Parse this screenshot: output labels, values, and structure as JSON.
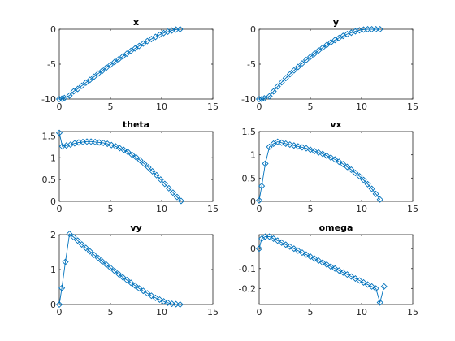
{
  "figure": {
    "background": "#ffffff",
    "series_color": "#0072bd"
  },
  "chart_data": [
    {
      "type": "line",
      "title": "x",
      "xlim": [
        0,
        15
      ],
      "ylim": [
        -10,
        0
      ],
      "xticks": [
        0,
        5,
        10,
        15
      ],
      "yticks": [
        -10,
        -5,
        0
      ],
      "marker": "diamond",
      "x": [
        0,
        0.25,
        0.5,
        1,
        1.4,
        1.8,
        2.2,
        2.6,
        3,
        3.4,
        3.8,
        4.2,
        4.6,
        5,
        5.4,
        5.8,
        6.2,
        6.6,
        7,
        7.4,
        7.8,
        8.2,
        8.6,
        9,
        9.4,
        9.8,
        10.2,
        10.6,
        11,
        11.4,
        11.8
      ],
      "y": [
        -10,
        -9.95,
        -9.85,
        -9.5,
        -8.9,
        -8.55,
        -8.1,
        -7.65,
        -7.25,
        -6.8,
        -6.35,
        -5.95,
        -5.5,
        -5.1,
        -4.7,
        -4.3,
        -3.9,
        -3.5,
        -3.1,
        -2.75,
        -2.4,
        -2.05,
        -1.7,
        -1.4,
        -1.1,
        -0.8,
        -0.55,
        -0.35,
        -0.18,
        -0.05,
        0
      ]
    },
    {
      "type": "line",
      "title": "y",
      "xlim": [
        0,
        15
      ],
      "ylim": [
        -10,
        0
      ],
      "xticks": [
        0,
        5,
        10,
        15
      ],
      "yticks": [
        -10,
        -5,
        0
      ],
      "marker": "diamond",
      "x": [
        0,
        0.25,
        0.5,
        1,
        1.4,
        1.8,
        2.2,
        2.6,
        3,
        3.4,
        3.8,
        4.2,
        4.6,
        5,
        5.4,
        5.8,
        6.2,
        6.6,
        7,
        7.4,
        7.8,
        8.2,
        8.6,
        9,
        9.4,
        9.8,
        10.2,
        10.6,
        11,
        11.4,
        11.8
      ],
      "y": [
        -10,
        -10,
        -9.9,
        -9.6,
        -8.9,
        -8.2,
        -7.6,
        -7,
        -6.45,
        -5.9,
        -5.4,
        -4.9,
        -4.4,
        -3.95,
        -3.5,
        -3.05,
        -2.65,
        -2.25,
        -1.9,
        -1.55,
        -1.25,
        -0.95,
        -0.7,
        -0.5,
        -0.3,
        -0.15,
        -0.05,
        0,
        0,
        0,
        0
      ]
    },
    {
      "type": "line",
      "title": "theta",
      "xlim": [
        0,
        15
      ],
      "ylim": [
        0,
        1.6
      ],
      "xticks": [
        0,
        5,
        10,
        15
      ],
      "yticks": [
        0,
        0.5,
        1,
        1.5
      ],
      "marker": "diamond",
      "x": [
        0,
        0.3,
        0.7,
        1.1,
        1.5,
        1.9,
        2.3,
        2.7,
        3.1,
        3.5,
        3.9,
        4.3,
        4.7,
        5.1,
        5.5,
        5.9,
        6.3,
        6.7,
        7.1,
        7.5,
        7.9,
        8.3,
        8.7,
        9.1,
        9.5,
        9.9,
        10.3,
        10.7,
        11.1,
        11.5,
        11.9
      ],
      "y": [
        1.57,
        1.26,
        1.28,
        1.3,
        1.33,
        1.35,
        1.36,
        1.37,
        1.37,
        1.36,
        1.35,
        1.34,
        1.32,
        1.29,
        1.26,
        1.22,
        1.18,
        1.13,
        1.07,
        1.01,
        0.94,
        0.86,
        0.78,
        0.69,
        0.6,
        0.5,
        0.4,
        0.3,
        0.2,
        0.1,
        0.01
      ]
    },
    {
      "type": "line",
      "title": "vx",
      "xlim": [
        0,
        15
      ],
      "ylim": [
        0,
        1.5
      ],
      "xticks": [
        0,
        5,
        10,
        15
      ],
      "yticks": [
        0,
        0.5,
        1,
        1.5
      ],
      "marker": "diamond",
      "x": [
        0,
        0.25,
        0.6,
        1,
        1.4,
        1.8,
        2.2,
        2.6,
        3,
        3.4,
        3.8,
        4.2,
        4.6,
        5,
        5.4,
        5.8,
        6.2,
        6.6,
        7,
        7.4,
        7.8,
        8.2,
        8.6,
        9,
        9.4,
        9.8,
        10.2,
        10.6,
        11,
        11.4,
        11.8
      ],
      "y": [
        0.02,
        0.33,
        0.81,
        1.17,
        1.24,
        1.28,
        1.26,
        1.24,
        1.22,
        1.2,
        1.18,
        1.16,
        1.14,
        1.11,
        1.08,
        1.05,
        1.02,
        0.98,
        0.94,
        0.9,
        0.85,
        0.8,
        0.74,
        0.68,
        0.61,
        0.54,
        0.46,
        0.37,
        0.27,
        0.16,
        0.04
      ]
    },
    {
      "type": "line",
      "title": "vy",
      "xlim": [
        0,
        15
      ],
      "ylim": [
        0,
        2
      ],
      "xticks": [
        0,
        5,
        10,
        15
      ],
      "yticks": [
        0,
        1,
        2
      ],
      "marker": "diamond",
      "x": [
        0,
        0.25,
        0.6,
        1,
        1.4,
        1.8,
        2.2,
        2.6,
        3,
        3.4,
        3.8,
        4.2,
        4.6,
        5,
        5.4,
        5.8,
        6.2,
        6.6,
        7,
        7.4,
        7.8,
        8.2,
        8.6,
        9,
        9.4,
        9.8,
        10.2,
        10.6,
        11,
        11.4,
        11.8
      ],
      "y": [
        0,
        0.47,
        1.22,
        2.02,
        1.93,
        1.83,
        1.72,
        1.62,
        1.52,
        1.42,
        1.33,
        1.23,
        1.14,
        1.05,
        0.96,
        0.87,
        0.78,
        0.7,
        0.62,
        0.54,
        0.46,
        0.39,
        0.32,
        0.25,
        0.19,
        0.14,
        0.09,
        0.05,
        0.02,
        0.01,
        0
      ]
    },
    {
      "type": "line",
      "title": "omega",
      "xlim": [
        0,
        15
      ],
      "ylim": [
        -0.28,
        0.07
      ],
      "xticks": [
        0,
        5,
        10,
        15
      ],
      "yticks": [
        -0.2,
        -0.1,
        0
      ],
      "marker": "diamond",
      "x": [
        0,
        0.25,
        0.6,
        1,
        1.4,
        1.8,
        2.2,
        2.6,
        3,
        3.4,
        3.8,
        4.2,
        4.6,
        5,
        5.4,
        5.8,
        6.2,
        6.6,
        7,
        7.4,
        7.8,
        8.2,
        8.6,
        9,
        9.4,
        9.8,
        10.2,
        10.6,
        11,
        11.4,
        11.8,
        12.2
      ],
      "y": [
        0,
        0.05,
        0.06,
        0.06,
        0.05,
        0.04,
        0.03,
        0.02,
        0.01,
        0,
        -0.01,
        -0.02,
        -0.03,
        -0.04,
        -0.05,
        -0.06,
        -0.07,
        -0.08,
        -0.09,
        -0.1,
        -0.11,
        -0.12,
        -0.13,
        -0.14,
        -0.15,
        -0.16,
        -0.17,
        -0.18,
        -0.19,
        -0.2,
        -0.27,
        -0.19
      ]
    }
  ]
}
